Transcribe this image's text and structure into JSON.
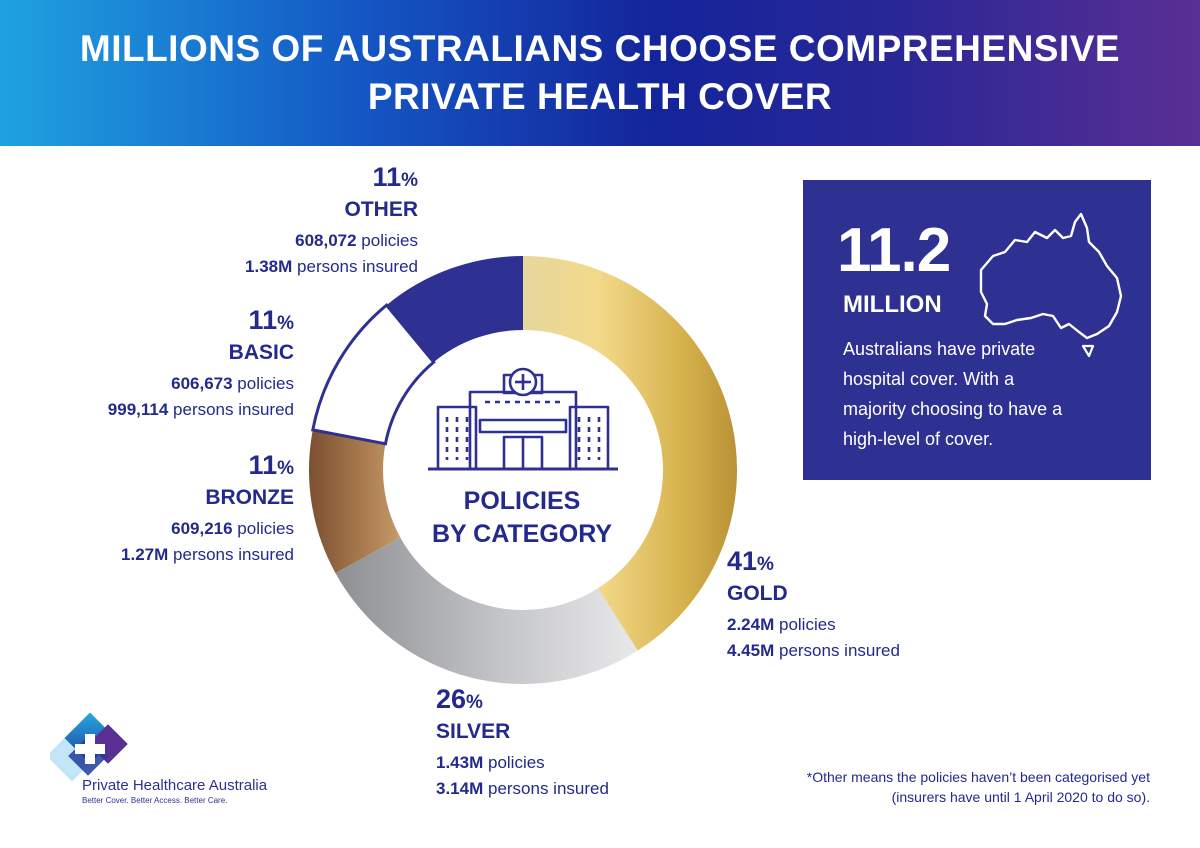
{
  "header": {
    "title_line1": "MILLIONS OF AUSTRALIANS CHOOSE COMPREHENSIVE",
    "title_line2": "PRIVATE HEALTH COVER"
  },
  "chart_data": {
    "type": "pie",
    "style": "donut",
    "title": "POLICIES BY CATEGORY",
    "title_line1": "POLICIES",
    "title_line2": "BY CATEGORY",
    "segments": [
      {
        "name": "GOLD",
        "percent": 41,
        "percent_label": "41",
        "policies": "2.24M",
        "persons": "4.45M",
        "color": "#d9b84e"
      },
      {
        "name": "SILVER",
        "percent": 26,
        "percent_label": "26",
        "policies": "1.43M",
        "persons": "3.14M",
        "color": "#b9babd"
      },
      {
        "name": "BRONZE",
        "percent": 11,
        "percent_label": "11",
        "policies": "609,216",
        "persons": "1.27M",
        "color": "#a57649"
      },
      {
        "name": "BASIC",
        "percent": 11,
        "percent_label": "11",
        "policies": "606,673",
        "persons": "999,114",
        "color": "#ffffff"
      },
      {
        "name": "OTHER",
        "percent": 11,
        "percent_label": "11",
        "policies": "608,072",
        "persons": "1.38M",
        "color": "#2e3192"
      }
    ],
    "percent_symbol": "%",
    "policies_suffix": "policies",
    "persons_suffix": "persons insured"
  },
  "stat_box": {
    "number": "11.2",
    "unit": "MILLION",
    "text_lines": [
      "Australians have private",
      "hospital cover. With a",
      "majority choosing to have a",
      "high-level of cover."
    ],
    "background": "#2e3192"
  },
  "footnote": {
    "line1": "*Other means the policies haven’t been categorised yet",
    "line2": "(insurers have until 1 April 2020 to do so)."
  },
  "logo": {
    "name": "Private Healthcare Australia",
    "tagline": "Better Cover. Better Access. Better Care."
  },
  "colors": {
    "primary": "#2e3192",
    "text": "#232a8c"
  }
}
